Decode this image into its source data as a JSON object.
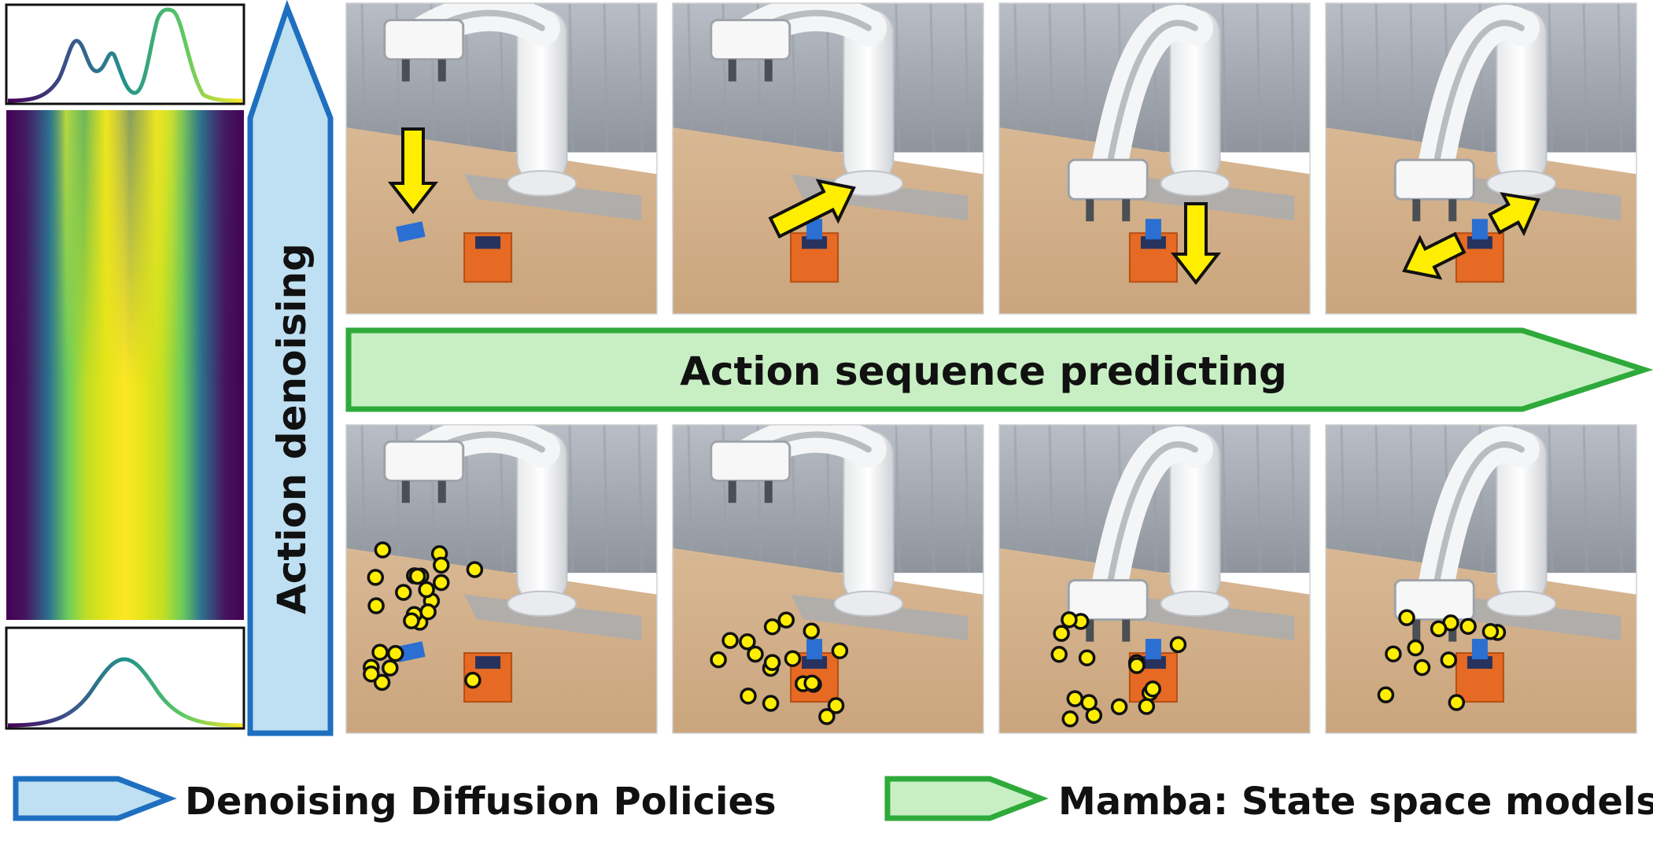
{
  "labels": {
    "vertical_arrow": "Action denoising",
    "horizontal_arrow": "Action sequence predicting"
  },
  "legend": [
    {
      "label": "Denoising Diffusion Policies",
      "fill": "#bfe0f2",
      "stroke": "#1f6fc0"
    },
    {
      "label": "Mamba: State space models",
      "fill": "#c8efc4",
      "stroke": "#2eaa3a"
    }
  ],
  "colors": {
    "blue_arrow_fill": "#bfe0f2",
    "blue_arrow_stroke": "#1f6fc0",
    "green_arrow_fill": "#c8efc4",
    "green_arrow_stroke": "#2eaa3a",
    "motion_arrow": "#ffee00",
    "action_dot": "#ffee00"
  },
  "rows": {
    "top": {
      "marker": "arrow",
      "frames": [
        {
          "arrow": "down"
        },
        {
          "arrow": "up-right"
        },
        {
          "arrow": "down"
        },
        {
          "arrow": "double-diagonal"
        }
      ]
    },
    "bottom": {
      "marker": "dots",
      "frames": [
        {
          "dots": 24
        },
        {
          "dots": 18
        },
        {
          "dots": 16
        },
        {
          "dots": 12
        }
      ]
    }
  }
}
